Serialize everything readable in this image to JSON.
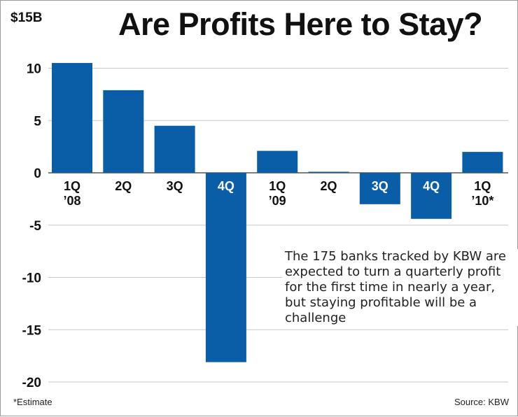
{
  "chart_data": {
    "type": "bar",
    "title": "Are Profits Here to Stay?",
    "unit_label": "$15B",
    "categories": [
      [
        "1Q",
        "’08"
      ],
      [
        "2Q"
      ],
      [
        "3Q"
      ],
      [
        "4Q"
      ],
      [
        "1Q",
        "’09"
      ],
      [
        "2Q"
      ],
      [
        "3Q"
      ],
      [
        "4Q"
      ],
      [
        "1Q",
        "’10*"
      ]
    ],
    "values": [
      10.5,
      7.9,
      4.5,
      -18.1,
      2.1,
      0.1,
      -3.0,
      -4.4,
      2.0
    ],
    "ylim": [
      -20,
      15
    ],
    "yticks": [
      10,
      5,
      0,
      -5,
      -10,
      -15,
      -20
    ],
    "ytick_labels": [
      "10",
      "5",
      "0",
      "-5",
      "-10",
      "-15",
      "-20"
    ],
    "grid": true,
    "bar_color": "#0a5ea8",
    "annotation": "The 175 banks tracked by KBW are expected to turn a quarterly profit for the first time in nearly a year, but staying profitable will be a challenge",
    "footnote": "*Estimate",
    "source": "Source: KBW"
  }
}
